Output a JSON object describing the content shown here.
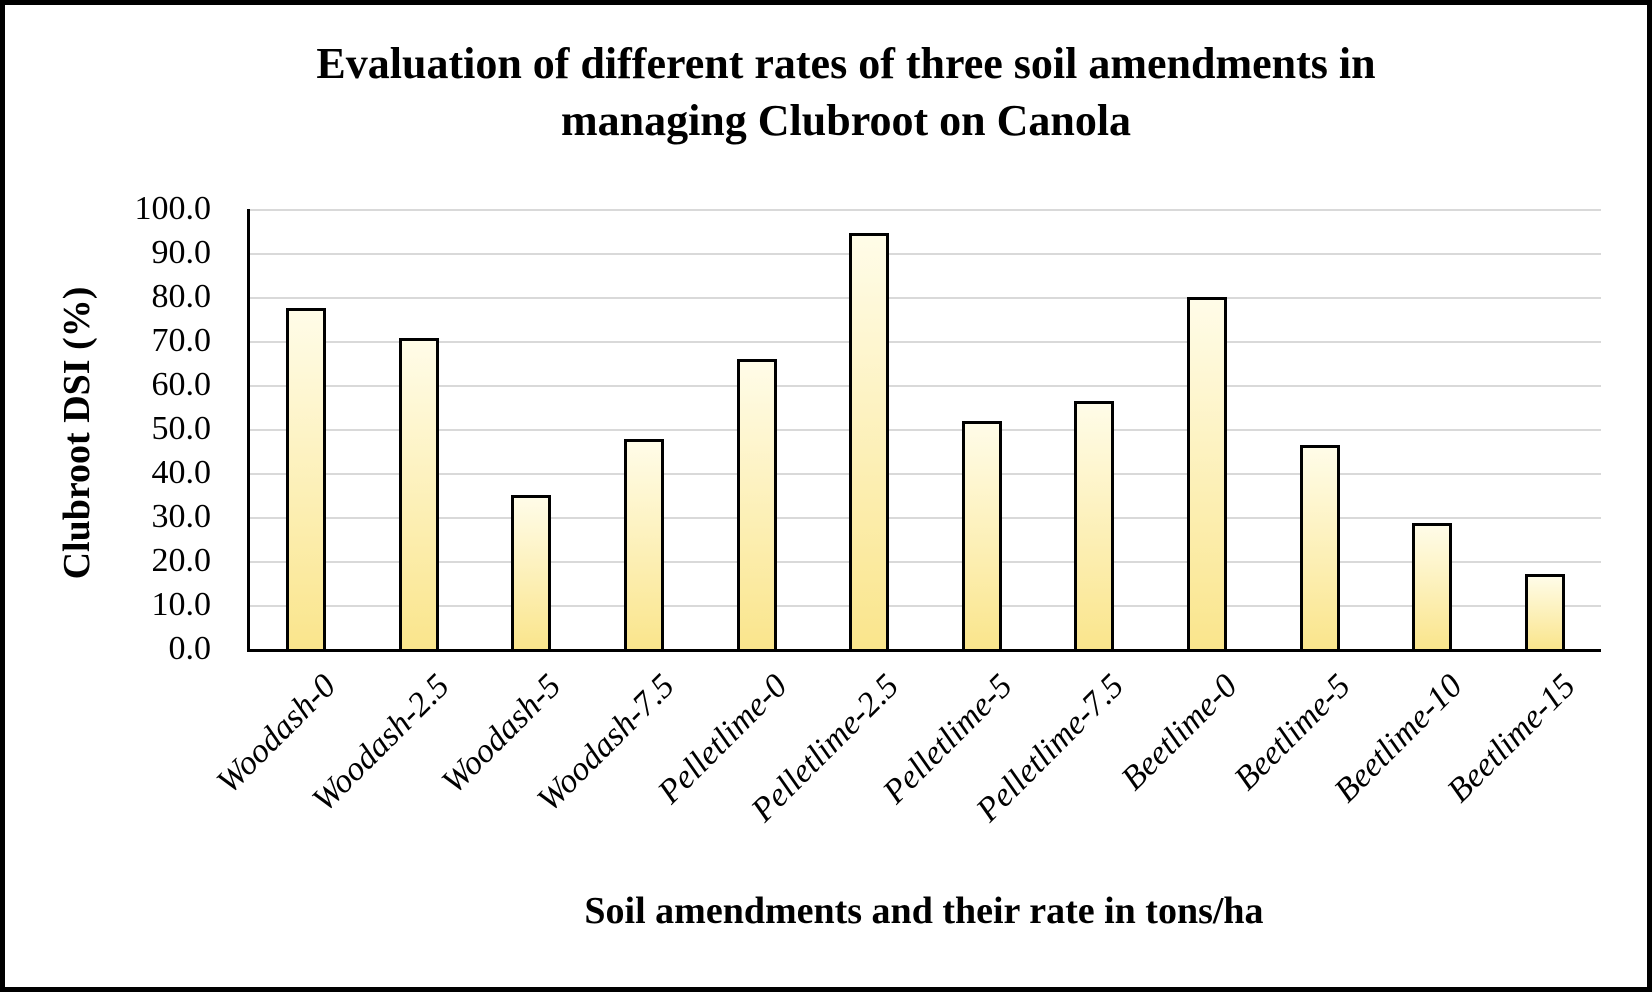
{
  "chart_data": {
    "type": "bar",
    "title": "Evaluation of different rates of three soil amendments in managing Clubroot on Canola",
    "title_lines": [
      "Evaluation of different rates of three soil amendments in",
      "managing Clubroot on Canola"
    ],
    "xlabel": "Soil amendments and their rate in tons/ha",
    "ylabel": "Clubroot DSI (%)",
    "categories": [
      "Woodash-0",
      "Woodash-2.5",
      "Woodash-5",
      "Woodash-7.5",
      "Pelletlime-0",
      "Pelletlime-2.5",
      "Pelletlime-5",
      "Pelletlime-7.5",
      "Beetlime-0",
      "Beetlime-5",
      "Beetlime-10",
      "Beetlime-15"
    ],
    "values": [
      77.5,
      70.6,
      35.0,
      47.8,
      65.8,
      94.5,
      51.9,
      56.3,
      80.0,
      46.4,
      28.7,
      17.0
    ],
    "ylim": [
      0,
      100
    ],
    "ytick_step": 10,
    "ytick_labels": [
      "0.0",
      "10.0",
      "20.0",
      "30.0",
      "40.0",
      "50.0",
      "60.0",
      "70.0",
      "80.0",
      "90.0",
      "100.0"
    ],
    "grid": true,
    "legend_position": "none",
    "bar_fill_top": "#FFFCE8",
    "bar_fill_bottom": "#FAE58C",
    "bar_border_color": "#000000",
    "gridline_color": "#D9D9D9",
    "axis_color": "#000000"
  }
}
